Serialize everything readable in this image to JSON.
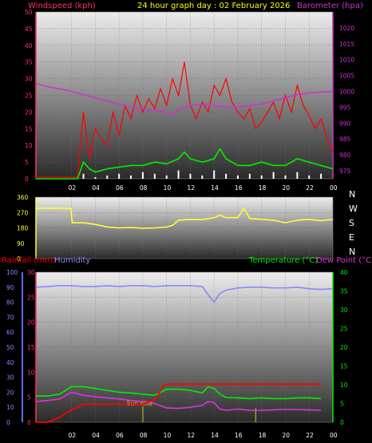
{
  "header": {
    "wind_label": "Windspeed (kph)",
    "title": "24 hour graph day : 02 February 2026",
    "baro_label": "Barometer (hpa)",
    "rain_label": "Rainfall (mm)",
    "humidity_label": "Humidity",
    "temp_label": "Temperature (°C)",
    "dew_label": "Dew Point (°C)",
    "sunrise_label": "Sun Rise"
  },
  "colors": {
    "wind_label": "#ff3366",
    "title": "#ffff00",
    "baro": "#cc33cc",
    "wind_gust": "#ff0000",
    "wind_avg": "#00ee00",
    "wind_min": "#ffffff",
    "direction": "#ffff33",
    "rain": "#ff0000",
    "humidity": "#8888ff",
    "humidity_axis": "#6666ff",
    "temperature": "#00ee00",
    "dewpoint": "#dd33dd",
    "sunrise": "#cccc00"
  },
  "compass": [
    "N",
    "W",
    "S",
    "E",
    "N"
  ],
  "chart_data": [
    {
      "type": "line",
      "title": "24 hour graph day : 02 February 2026",
      "x_ticks": [
        "02",
        "04",
        "06",
        "08",
        "10",
        "12",
        "14",
        "16",
        "18",
        "20",
        "22",
        "00"
      ],
      "xlim": [
        23,
        48
      ],
      "y_left": {
        "label": "Windspeed (kph)",
        "ticks": [
          0,
          5,
          10,
          15,
          20,
          25,
          30,
          35,
          40,
          45,
          50
        ],
        "ylim": [
          0,
          50
        ]
      },
      "y_right": {
        "label": "Barometer (hpa)",
        "ticks": [
          975,
          980,
          985,
          990,
          995,
          1000,
          1005,
          1010,
          1015,
          1020
        ],
        "ylim": [
          972.5,
          1025
        ]
      },
      "series": [
        {
          "name": "Barometer (hpa)",
          "x": [
            23,
            24,
            25,
            26,
            27,
            28,
            29,
            30,
            31,
            32,
            33,
            34,
            34.5,
            35,
            36,
            37,
            38,
            39,
            40,
            41,
            42,
            43,
            44,
            45,
            46,
            47,
            48
          ],
          "values": [
            1002.5,
            1001.5,
            1000.8,
            1000,
            999,
            998,
            997,
            996,
            995,
            994.5,
            994,
            993.5,
            992.5,
            994.5,
            995.5,
            996,
            995.5,
            995,
            995,
            995.5,
            996,
            997,
            998,
            999,
            999.5,
            999.8,
            1000
          ]
        },
        {
          "name": "wind gust",
          "x": [
            23,
            24,
            25,
            26,
            26.5,
            27,
            27.5,
            28,
            28.5,
            29,
            29.5,
            30,
            30.5,
            31,
            31.5,
            32,
            32.5,
            33,
            33.5,
            34,
            34.5,
            35,
            35.5,
            36,
            36.5,
            37,
            37.5,
            38,
            38.5,
            39,
            39.5,
            40,
            40.5,
            41,
            41.5,
            42,
            42.5,
            43,
            43.5,
            44,
            44.5,
            45,
            45.5,
            46,
            46.5,
            47,
            47.5,
            48
          ],
          "values": [
            0.5,
            0.5,
            0.5,
            0.5,
            0.5,
            20,
            6,
            15,
            12,
            10,
            20,
            13,
            22,
            18,
            25,
            20,
            24,
            21,
            27,
            22,
            30,
            25,
            35,
            22,
            18,
            23,
            20,
            28,
            25,
            30,
            23,
            20,
            18,
            21,
            15,
            17,
            20,
            23,
            18,
            25,
            20,
            28,
            22,
            19,
            15,
            18,
            12,
            8
          ]
        },
        {
          "name": "wind average",
          "x": [
            23,
            24,
            25,
            26,
            26.5,
            27,
            27.5,
            28,
            29,
            30,
            31,
            32,
            33,
            34,
            35,
            35.5,
            36,
            37,
            38,
            38.5,
            39,
            40,
            41,
            42,
            43,
            44,
            45,
            46,
            47,
            48
          ],
          "values": [
            0,
            0,
            0,
            0,
            0,
            5,
            3,
            2,
            3,
            3.5,
            4,
            4,
            5,
            4.5,
            6,
            8,
            6,
            5,
            6,
            9,
            6,
            4,
            4,
            5,
            4,
            4,
            6,
            5,
            4,
            3
          ]
        },
        {
          "name": "wind minimum",
          "x": [
            27,
            28,
            29,
            30,
            31,
            32,
            33,
            34,
            35,
            36,
            37,
            38,
            39,
            40,
            41,
            42,
            43,
            44,
            45,
            46,
            47
          ],
          "values": [
            1.5,
            0.5,
            1,
            1.5,
            1,
            2,
            1.5,
            1,
            2.5,
            1.5,
            1,
            2.5,
            1.5,
            1,
            1.5,
            1,
            2,
            1,
            2,
            1,
            1.5
          ]
        }
      ]
    },
    {
      "type": "line",
      "x_ticks": [
        "02",
        "04",
        "06",
        "08",
        "10",
        "12",
        "14",
        "16",
        "18",
        "20",
        "22",
        "00"
      ],
      "xlim": [
        23,
        48
      ],
      "y_left": {
        "ticks": [
          0,
          90,
          180,
          270,
          360
        ],
        "ylim": [
          0,
          360
        ]
      },
      "y_right": {
        "labels": [
          "N",
          "W",
          "S",
          "E",
          "N"
        ]
      },
      "series": [
        {
          "name": "wind direction",
          "x": [
            23,
            24,
            25,
            25.95,
            26.05,
            27,
            28,
            29,
            30,
            31,
            32,
            33,
            34,
            34.5,
            35,
            36,
            37,
            38,
            38.5,
            39,
            40,
            40.5,
            41,
            42,
            43,
            44,
            45,
            46,
            47,
            48
          ],
          "values": [
            295,
            295,
            295,
            295,
            210,
            210,
            200,
            185,
            180,
            182,
            178,
            180,
            185,
            195,
            225,
            230,
            228,
            240,
            255,
            240,
            240,
            295,
            235,
            230,
            225,
            210,
            225,
            230,
            222,
            230
          ]
        }
      ]
    },
    {
      "type": "line",
      "x_ticks": [
        "02",
        "04",
        "06",
        "08",
        "10",
        "12",
        "14",
        "16",
        "18",
        "20",
        "22",
        "00"
      ],
      "xlim": [
        23,
        48
      ],
      "y_left": {
        "label": "Rainfall (mm)",
        "ticks": [
          0,
          5,
          10,
          15,
          20,
          25,
          30
        ],
        "ylim": [
          0,
          30
        ]
      },
      "y_far_left": {
        "label": "Humidity",
        "ticks": [
          0,
          10,
          20,
          30,
          40,
          50,
          60,
          70,
          80,
          90,
          100
        ],
        "ylim": [
          0,
          100
        ]
      },
      "y_right": {
        "label": "Temperature (°C) / Dew Point (°C)",
        "ticks": [
          0,
          5,
          10,
          15,
          20,
          25,
          30,
          35,
          40
        ],
        "ylim": [
          0,
          40
        ]
      },
      "annotations": [
        {
          "text": "Sun Rise",
          "x": 32
        }
      ],
      "series": [
        {
          "name": "Rainfall (mm)",
          "x": [
            23,
            24,
            25,
            26,
            26.5,
            27,
            28,
            29,
            30,
            31,
            32,
            33,
            33.3,
            33.6,
            34,
            35,
            36,
            37,
            38,
            39,
            40,
            41,
            42,
            43,
            44,
            45,
            46,
            47
          ],
          "values": [
            0,
            0,
            1,
            2.5,
            3,
            3.6,
            3.6,
            3.6,
            3.6,
            3.6,
            3.6,
            4.5,
            5.5,
            7,
            7.6,
            7.6,
            7.6,
            7.6,
            7.6,
            7.6,
            7.6,
            7.6,
            7.6,
            7.6,
            7.6,
            7.6,
            7.6,
            7.6
          ]
        },
        {
          "name": "Humidity",
          "x": [
            23,
            24,
            25,
            26,
            27,
            28,
            29,
            30,
            31,
            32,
            33,
            34,
            35,
            36,
            37,
            37.5,
            38,
            38.5,
            39,
            40,
            41,
            42,
            43,
            44,
            45,
            46,
            47,
            48
          ],
          "values": [
            90,
            90.5,
            91,
            91,
            90.5,
            90.5,
            91,
            90.5,
            91,
            91,
            90.5,
            91,
            91,
            91,
            90.5,
            85,
            80,
            86,
            88,
            89.5,
            90,
            90,
            89.5,
            89.5,
            90,
            89,
            88.5,
            89
          ]
        },
        {
          "name": "Temperature (°C)",
          "x": [
            23,
            24,
            25,
            26,
            27,
            28,
            29,
            30,
            31,
            32,
            33,
            34,
            35,
            36,
            37,
            37.5,
            38,
            38.5,
            39,
            40,
            41,
            42,
            43,
            44,
            45,
            46,
            47
          ],
          "values": [
            7,
            7,
            7.5,
            9.5,
            9.5,
            9,
            8.5,
            8,
            7.8,
            7.5,
            7.2,
            8.8,
            8.8,
            8.5,
            7.8,
            9.5,
            9,
            7.5,
            6.6,
            6.5,
            6.3,
            6.5,
            6.3,
            6.3,
            6.5,
            6.5,
            6.3
          ]
        },
        {
          "name": "Dew Point (°C)",
          "x": [
            23,
            24,
            25,
            26,
            27,
            28,
            29,
            30,
            31,
            32,
            33,
            34,
            35,
            36,
            37,
            37.5,
            38,
            38.5,
            39,
            40,
            41,
            42,
            43,
            44,
            45,
            46,
            47
          ],
          "values": [
            5.5,
            5.8,
            6.2,
            8,
            7.2,
            6.8,
            6.5,
            6.2,
            5.8,
            5.5,
            5,
            3.8,
            3.7,
            4,
            4.5,
            5.5,
            5.2,
            3.5,
            3.2,
            3.5,
            3.2,
            3.2,
            3.3,
            3.4,
            3.4,
            3.3,
            3.2
          ]
        }
      ]
    }
  ]
}
